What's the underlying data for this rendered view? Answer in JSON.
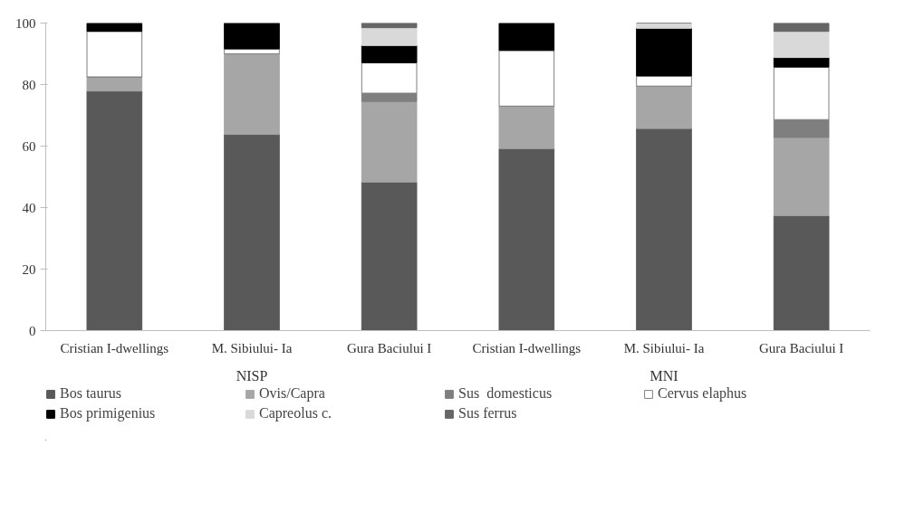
{
  "chart_data": {
    "type": "bar",
    "stacked": true,
    "categories": [
      "Cristian I-dwellings",
      "M. Sibiului- Ia",
      "Gura Baciului I",
      "Cristian I-dwellings",
      "M. Sibiului- Ia",
      "Gura Baciului I"
    ],
    "series": [
      {
        "name": "Bos taurus",
        "color": "#595959",
        "values": [
          77.9,
          63.8,
          48.3,
          59.2,
          65.7,
          37.4
        ]
      },
      {
        "name": "Ovis/Capra",
        "color": "#a6a6a6",
        "values": [
          4.6,
          26.2,
          26.2,
          13.8,
          13.8,
          25.4
        ]
      },
      {
        "name": "Sus  domesticus",
        "color": "#7f7f7f",
        "values": [
          0,
          0,
          2.7,
          0,
          0,
          5.8
        ]
      },
      {
        "name": "Cervus elaphus",
        "color": "#ffffff",
        "values": [
          14.8,
          1.6,
          9.9,
          18.1,
          3.3,
          17.1
        ]
      },
      {
        "name": "Bos primigenius",
        "color": "#000000",
        "values": [
          2.7,
          8.4,
          5.6,
          8.9,
          15.5,
          3.1
        ]
      },
      {
        "name": "Capreolus c.",
        "color": "#d9d9d9",
        "values": [
          0,
          0,
          5.8,
          0,
          1.7,
          8.5
        ]
      },
      {
        "name": "Sus ferrus",
        "color": "#666666",
        "values": [
          0,
          0,
          1.5,
          0,
          0,
          2.7
        ]
      }
    ],
    "ylim": [
      0,
      100
    ],
    "yticks": [
      0,
      20,
      40,
      60,
      80,
      100
    ],
    "grid": false,
    "legend": "bottom",
    "annotations": [
      "NISP",
      "MNI"
    ]
  }
}
